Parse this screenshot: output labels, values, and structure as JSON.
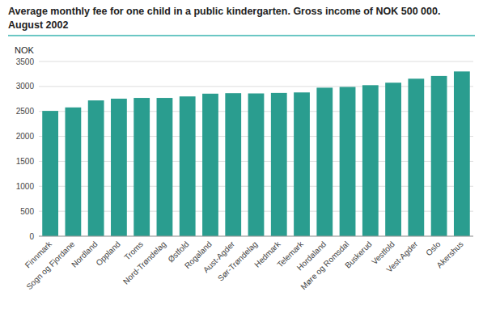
{
  "chart_data": {
    "type": "bar",
    "title": "Average monthly fee for one child in a public kindergarten. Gross income of NOK 500 000.",
    "subtitle": "August 2002",
    "ylabel": "NOK",
    "categories": [
      "Finnmark",
      "Sogn og Fjordane",
      "Nordland",
      "Oppland",
      "Troms",
      "Nord-Trøndelag",
      "Østfold",
      "Rogaland",
      "Aust-Agder",
      "Sør-Trøndelag",
      "Hedmark",
      "Telemark",
      "Hordaland",
      "Møre og Romsdal",
      "Buskerud",
      "Vestfold",
      "Vest-Agder",
      "Oslo",
      "Akershus"
    ],
    "values": [
      2510,
      2580,
      2720,
      2755,
      2770,
      2770,
      2800,
      2855,
      2865,
      2860,
      2870,
      2880,
      2975,
      2990,
      3025,
      3075,
      3155,
      3210,
      3300
    ],
    "color": "#2a9d8f",
    "ylim": [
      0,
      3500
    ],
    "yticks": [
      0,
      500,
      1000,
      1500,
      2000,
      2500,
      3000,
      3500
    ],
    "grid": true
  }
}
